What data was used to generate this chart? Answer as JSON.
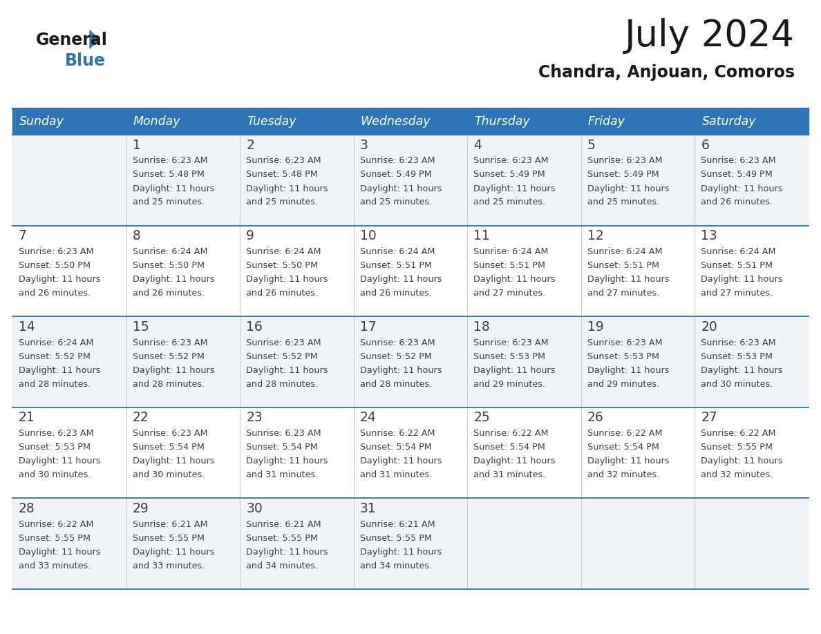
{
  "title": "July 2024",
  "subtitle": "Chandra, Anjouan, Comoros",
  "header_bg_color": "#2E75B6",
  "header_text_color": "#FFFFFF",
  "day_names": [
    "Sunday",
    "Monday",
    "Tuesday",
    "Wednesday",
    "Thursday",
    "Friday",
    "Saturday"
  ],
  "row_colors": [
    "#F0F4F8",
    "#FFFFFF"
  ],
  "border_color": "#2E75B6",
  "text_color": "#404040",
  "logo_color_general": "#1A1A1A",
  "logo_color_blue": "#2E75B6",
  "logo_triangle_color": "#2E75B6",
  "calendar": [
    [
      {
        "day": "",
        "sunrise": "",
        "sunset": "",
        "daylight": ""
      },
      {
        "day": "1",
        "sunrise": "6:23 AM",
        "sunset": "5:48 PM",
        "daylight": "11 hours and 25 minutes."
      },
      {
        "day": "2",
        "sunrise": "6:23 AM",
        "sunset": "5:48 PM",
        "daylight": "11 hours and 25 minutes."
      },
      {
        "day": "3",
        "sunrise": "6:23 AM",
        "sunset": "5:49 PM",
        "daylight": "11 hours and 25 minutes."
      },
      {
        "day": "4",
        "sunrise": "6:23 AM",
        "sunset": "5:49 PM",
        "daylight": "11 hours and 25 minutes."
      },
      {
        "day": "5",
        "sunrise": "6:23 AM",
        "sunset": "5:49 PM",
        "daylight": "11 hours and 25 minutes."
      },
      {
        "day": "6",
        "sunrise": "6:23 AM",
        "sunset": "5:49 PM",
        "daylight": "11 hours and 26 minutes."
      }
    ],
    [
      {
        "day": "7",
        "sunrise": "6:23 AM",
        "sunset": "5:50 PM",
        "daylight": "11 hours and 26 minutes."
      },
      {
        "day": "8",
        "sunrise": "6:24 AM",
        "sunset": "5:50 PM",
        "daylight": "11 hours and 26 minutes."
      },
      {
        "day": "9",
        "sunrise": "6:24 AM",
        "sunset": "5:50 PM",
        "daylight": "11 hours and 26 minutes."
      },
      {
        "day": "10",
        "sunrise": "6:24 AM",
        "sunset": "5:51 PM",
        "daylight": "11 hours and 26 minutes."
      },
      {
        "day": "11",
        "sunrise": "6:24 AM",
        "sunset": "5:51 PM",
        "daylight": "11 hours and 27 minutes."
      },
      {
        "day": "12",
        "sunrise": "6:24 AM",
        "sunset": "5:51 PM",
        "daylight": "11 hours and 27 minutes."
      },
      {
        "day": "13",
        "sunrise": "6:24 AM",
        "sunset": "5:51 PM",
        "daylight": "11 hours and 27 minutes."
      }
    ],
    [
      {
        "day": "14",
        "sunrise": "6:24 AM",
        "sunset": "5:52 PM",
        "daylight": "11 hours and 28 minutes."
      },
      {
        "day": "15",
        "sunrise": "6:23 AM",
        "sunset": "5:52 PM",
        "daylight": "11 hours and 28 minutes."
      },
      {
        "day": "16",
        "sunrise": "6:23 AM",
        "sunset": "5:52 PM",
        "daylight": "11 hours and 28 minutes."
      },
      {
        "day": "17",
        "sunrise": "6:23 AM",
        "sunset": "5:52 PM",
        "daylight": "11 hours and 28 minutes."
      },
      {
        "day": "18",
        "sunrise": "6:23 AM",
        "sunset": "5:53 PM",
        "daylight": "11 hours and 29 minutes."
      },
      {
        "day": "19",
        "sunrise": "6:23 AM",
        "sunset": "5:53 PM",
        "daylight": "11 hours and 29 minutes."
      },
      {
        "day": "20",
        "sunrise": "6:23 AM",
        "sunset": "5:53 PM",
        "daylight": "11 hours and 30 minutes."
      }
    ],
    [
      {
        "day": "21",
        "sunrise": "6:23 AM",
        "sunset": "5:53 PM",
        "daylight": "11 hours and 30 minutes."
      },
      {
        "day": "22",
        "sunrise": "6:23 AM",
        "sunset": "5:54 PM",
        "daylight": "11 hours and 30 minutes."
      },
      {
        "day": "23",
        "sunrise": "6:23 AM",
        "sunset": "5:54 PM",
        "daylight": "11 hours and 31 minutes."
      },
      {
        "day": "24",
        "sunrise": "6:22 AM",
        "sunset": "5:54 PM",
        "daylight": "11 hours and 31 minutes."
      },
      {
        "day": "25",
        "sunrise": "6:22 AM",
        "sunset": "5:54 PM",
        "daylight": "11 hours and 31 minutes."
      },
      {
        "day": "26",
        "sunrise": "6:22 AM",
        "sunset": "5:54 PM",
        "daylight": "11 hours and 32 minutes."
      },
      {
        "day": "27",
        "sunrise": "6:22 AM",
        "sunset": "5:55 PM",
        "daylight": "11 hours and 32 minutes."
      }
    ],
    [
      {
        "day": "28",
        "sunrise": "6:22 AM",
        "sunset": "5:55 PM",
        "daylight": "11 hours and 33 minutes."
      },
      {
        "day": "29",
        "sunrise": "6:21 AM",
        "sunset": "5:55 PM",
        "daylight": "11 hours and 33 minutes."
      },
      {
        "day": "30",
        "sunrise": "6:21 AM",
        "sunset": "5:55 PM",
        "daylight": "11 hours and 34 minutes."
      },
      {
        "day": "31",
        "sunrise": "6:21 AM",
        "sunset": "5:55 PM",
        "daylight": "11 hours and 34 minutes."
      },
      {
        "day": "",
        "sunrise": "",
        "sunset": "",
        "daylight": ""
      },
      {
        "day": "",
        "sunrise": "",
        "sunset": "",
        "daylight": ""
      },
      {
        "day": "",
        "sunrise": "",
        "sunset": "",
        "daylight": ""
      }
    ]
  ]
}
